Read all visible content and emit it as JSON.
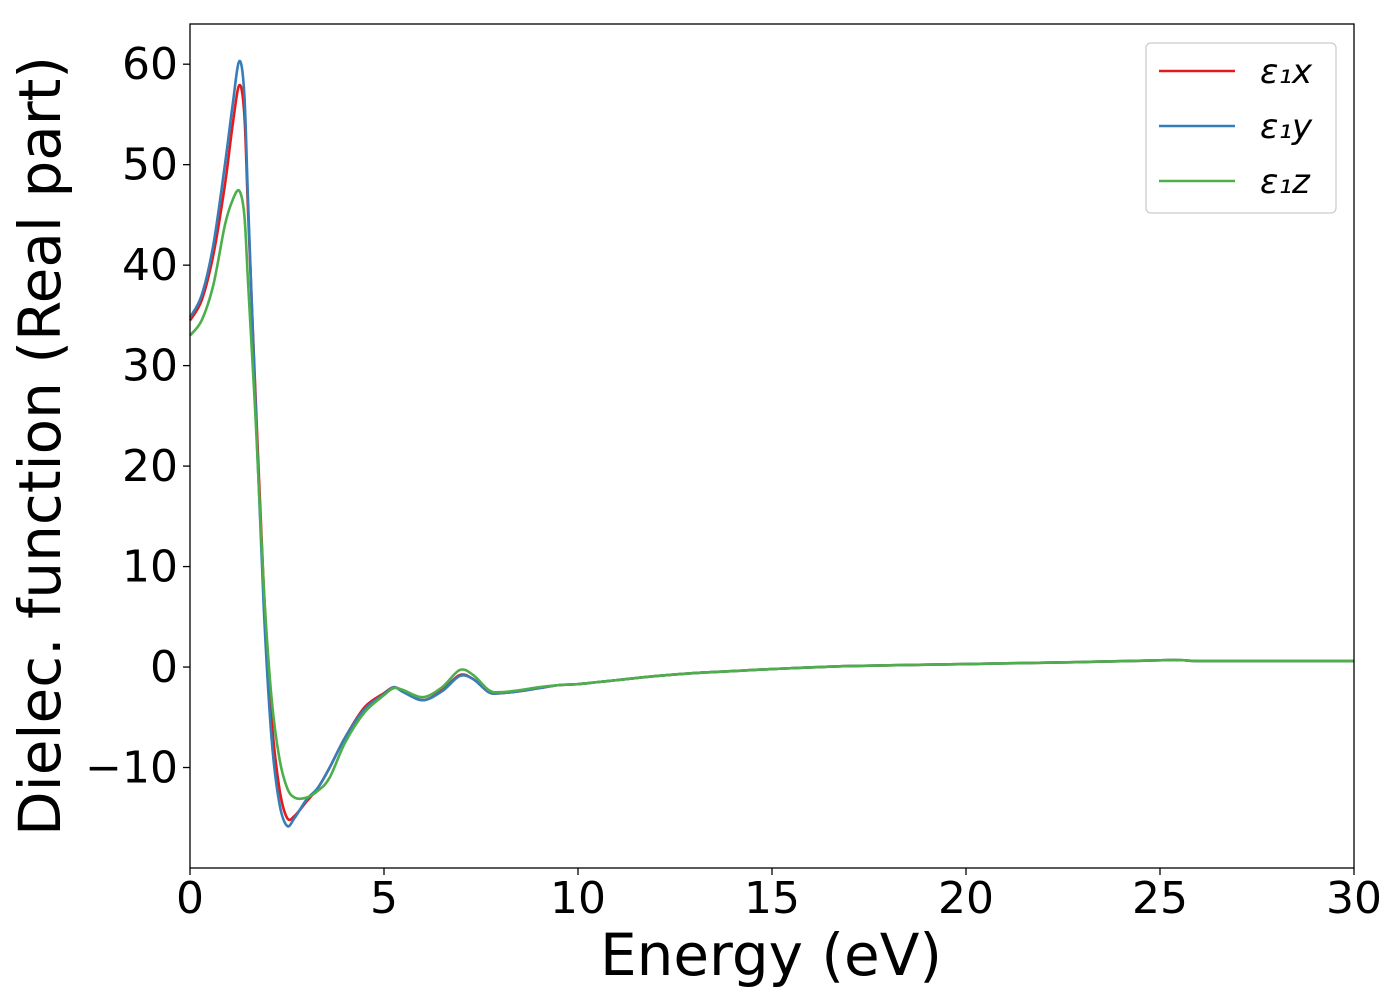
{
  "chart_data": {
    "type": "line",
    "title": "",
    "xlabel": "Energy (eV)",
    "ylabel": "Dielec. function (Real part)",
    "xlim": [
      0,
      30
    ],
    "ylim": [
      -20,
      64
    ],
    "xticks": [
      0,
      5,
      10,
      15,
      20,
      25,
      30
    ],
    "xtick_labels": [
      "0",
      "5",
      "10",
      "15",
      "20",
      "25",
      "30"
    ],
    "yticks": [
      -10,
      0,
      10,
      20,
      30,
      40,
      50,
      60
    ],
    "ytick_labels": [
      "−10",
      "0",
      "10",
      "20",
      "30",
      "40",
      "50",
      "60"
    ],
    "grid": false,
    "legend_position": "top-right",
    "series": [
      {
        "name": "ε₁x",
        "color": "#e41a1c",
        "x": [
          0,
          0.3,
          0.6,
          0.9,
          1.1,
          1.27,
          1.4,
          1.5,
          1.7,
          1.9,
          2.1,
          2.3,
          2.5,
          2.7,
          3.0,
          3.3,
          3.6,
          4.0,
          4.5,
          5.0,
          5.25,
          5.5,
          6.0,
          6.5,
          6.95,
          7.3,
          7.7,
          8.0,
          8.5,
          9.0,
          9.5,
          10.0,
          10.5,
          11.0,
          12.0,
          13.0,
          14.0,
          15.0,
          17.0,
          20.0,
          23.0,
          25.3,
          26.0,
          28.0,
          30.0
        ],
        "y": [
          34.5,
          36.5,
          41,
          48,
          54,
          57.9,
          55,
          45,
          26,
          8,
          -5,
          -12,
          -15,
          -14.8,
          -13.4,
          -12,
          -10,
          -7,
          -4,
          -2.6,
          -2,
          -2.4,
          -3.3,
          -2.3,
          -0.8,
          -1.2,
          -2.5,
          -2.6,
          -2.4,
          -2.1,
          -1.8,
          -1.7,
          -1.5,
          -1.3,
          -0.9,
          -0.6,
          -0.4,
          -0.2,
          0.1,
          0.3,
          0.5,
          0.7,
          0.6,
          0.6,
          0.6
        ]
      },
      {
        "name": "ε₁y",
        "color": "#377eb8",
        "x": [
          0,
          0.3,
          0.6,
          0.9,
          1.1,
          1.27,
          1.4,
          1.5,
          1.7,
          1.9,
          2.1,
          2.3,
          2.5,
          2.7,
          3.0,
          3.3,
          3.6,
          4.0,
          4.5,
          5.0,
          5.25,
          5.5,
          6.0,
          6.5,
          6.95,
          7.3,
          7.7,
          8.0,
          8.5,
          9.0,
          9.5,
          10.0,
          10.5,
          11.0,
          12.0,
          13.0,
          14.0,
          15.0,
          17.0,
          20.0,
          23.0,
          25.3,
          26.0,
          28.0,
          30.0
        ],
        "y": [
          34.8,
          37,
          42,
          50,
          56,
          60.3,
          57,
          46,
          25,
          6,
          -7,
          -13.5,
          -15.8,
          -15,
          -13.2,
          -12,
          -10,
          -7,
          -4.2,
          -2.7,
          -2,
          -2.5,
          -3.3,
          -2.4,
          -0.9,
          -1.2,
          -2.5,
          -2.6,
          -2.4,
          -2.1,
          -1.8,
          -1.7,
          -1.5,
          -1.3,
          -0.9,
          -0.6,
          -0.4,
          -0.2,
          0.1,
          0.3,
          0.5,
          0.7,
          0.6,
          0.6,
          0.6
        ]
      },
      {
        "name": "ε₁z",
        "color": "#4daf4a",
        "x": [
          0,
          0.3,
          0.6,
          0.9,
          1.1,
          1.27,
          1.4,
          1.5,
          1.7,
          1.9,
          2.1,
          2.3,
          2.5,
          2.7,
          3.0,
          3.3,
          3.6,
          4.0,
          4.5,
          5.0,
          5.25,
          5.5,
          6.0,
          6.5,
          6.95,
          7.3,
          7.7,
          8.0,
          8.5,
          9.0,
          9.5,
          10.0,
          10.5,
          11.0,
          12.0,
          13.0,
          14.0,
          15.0,
          17.0,
          20.0,
          23.0,
          25.3,
          26.0,
          28.0,
          30.0
        ],
        "y": [
          33,
          34.5,
          38,
          44,
          46.5,
          47.4,
          45,
          38,
          24,
          8,
          -3,
          -9,
          -12,
          -13,
          -13,
          -12.3,
          -11,
          -7.5,
          -4.5,
          -2.8,
          -2.1,
          -2.3,
          -3,
          -2,
          -0.3,
          -0.8,
          -2.3,
          -2.5,
          -2.3,
          -2.0,
          -1.8,
          -1.7,
          -1.5,
          -1.3,
          -0.9,
          -0.6,
          -0.4,
          -0.2,
          0.1,
          0.3,
          0.5,
          0.7,
          0.6,
          0.6,
          0.6
        ]
      }
    ]
  }
}
